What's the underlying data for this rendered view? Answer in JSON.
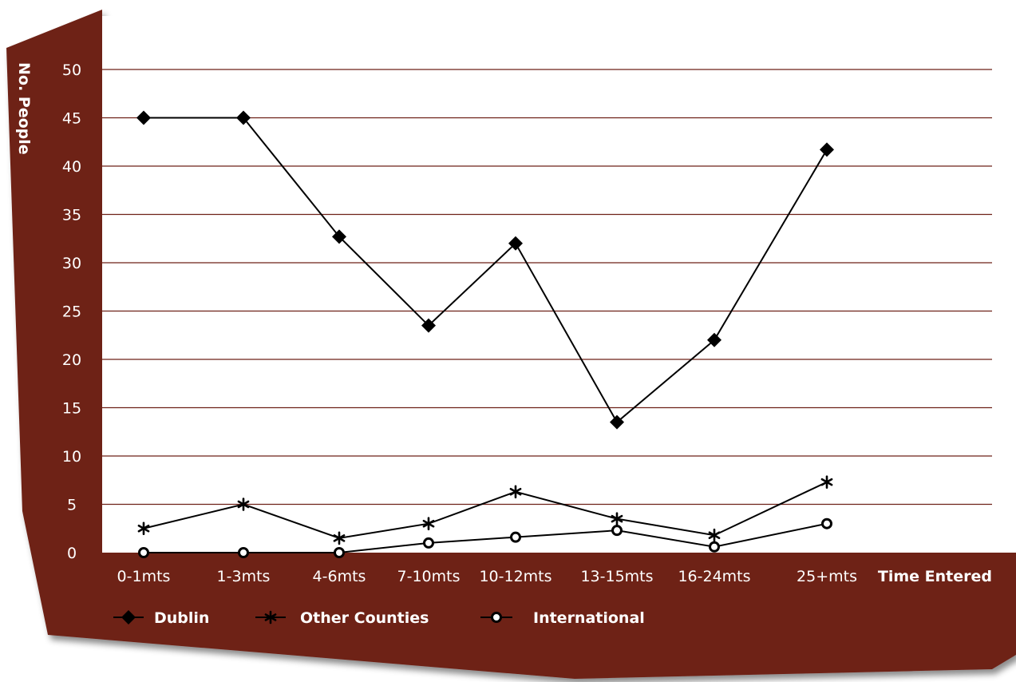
{
  "chart_data": {
    "type": "line",
    "categories": [
      "0-1mts",
      "1-3mts",
      "4-6mts",
      "7-10mts",
      "10-12mts",
      "13-15mts",
      "16-24mts",
      "25+mts"
    ],
    "xlabel": "Time Entered",
    "ylabel": "No. People",
    "ylim": [
      0,
      50
    ],
    "yticks": [
      "0",
      "5",
      "10",
      "15",
      "20",
      "25",
      "30",
      "35",
      "40",
      "45",
      "50"
    ],
    "grid": true,
    "legend_position": "bottom-left",
    "series": [
      {
        "name": "Dublin",
        "marker": "diamond",
        "values": [
          45,
          45,
          32.7,
          23.5,
          32,
          13.5,
          22,
          41.7
        ]
      },
      {
        "name": "Other Counties",
        "marker": "asterisk",
        "values": [
          2.5,
          5,
          1.5,
          3,
          6.3,
          3.5,
          1.8,
          7.3
        ]
      },
      {
        "name": "International",
        "marker": "circle",
        "values": [
          0,
          0,
          0,
          1,
          1.6,
          2.3,
          0.6,
          3
        ]
      }
    ]
  },
  "colors": {
    "panel": "#6e2118",
    "gridline": "#6e2118",
    "series_line": "#000000",
    "text": "#ffffff"
  }
}
